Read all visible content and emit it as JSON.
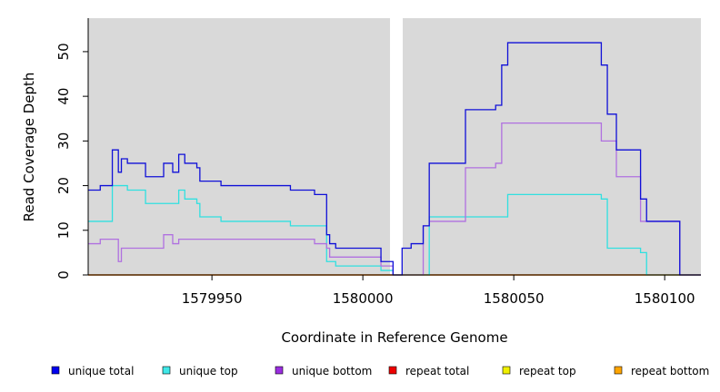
{
  "chart_data": {
    "type": "line",
    "title": "",
    "xlabel": "Coordinate in Reference Genome",
    "ylabel": "Read Coverage Depth",
    "xlim": [
      1579909,
      1580112
    ],
    "ylim": [
      0,
      57.5
    ],
    "x_ticks": [
      1579950,
      1580000,
      1580050,
      1580100
    ],
    "x_tick_labels": [
      "1579950",
      "1580000",
      "1580050",
      "1580100"
    ],
    "y_ticks": [
      0,
      10,
      20,
      30,
      40,
      50
    ],
    "y_tick_labels": [
      "0",
      "10",
      "20",
      "30",
      "40",
      "50"
    ],
    "grid": false,
    "legend_position": "bottom",
    "gap": [
      1580009.5,
      1580013.5
    ],
    "colors": {
      "plot_background": "#d9d9d9",
      "gap": "#ffffff"
    },
    "series": [
      {
        "name": "unique total",
        "color": "#1010d8",
        "swatch": "#0000ee",
        "points": [
          [
            1579909,
            19
          ],
          [
            1579913,
            19
          ],
          [
            1579913,
            20
          ],
          [
            1579917,
            20
          ],
          [
            1579917,
            28
          ],
          [
            1579919,
            28
          ],
          [
            1579919,
            23
          ],
          [
            1579920,
            23
          ],
          [
            1579920,
            26
          ],
          [
            1579922,
            26
          ],
          [
            1579922,
            25
          ],
          [
            1579928,
            25
          ],
          [
            1579928,
            22
          ],
          [
            1579934,
            22
          ],
          [
            1579934,
            25
          ],
          [
            1579937,
            25
          ],
          [
            1579937,
            23
          ],
          [
            1579939,
            23
          ],
          [
            1579939,
            27
          ],
          [
            1579941,
            27
          ],
          [
            1579941,
            25
          ],
          [
            1579945,
            25
          ],
          [
            1579945,
            24
          ],
          [
            1579946,
            24
          ],
          [
            1579946,
            21
          ],
          [
            1579953,
            21
          ],
          [
            1579953,
            20
          ],
          [
            1579976,
            20
          ],
          [
            1579976,
            19
          ],
          [
            1579984,
            19
          ],
          [
            1579984,
            18
          ],
          [
            1579988,
            18
          ],
          [
            1579988,
            9
          ],
          [
            1579989,
            9
          ],
          [
            1579989,
            7
          ],
          [
            1579991,
            7
          ],
          [
            1579991,
            6
          ],
          [
            1580006,
            6
          ],
          [
            1580006,
            3
          ],
          [
            1580010,
            3
          ],
          [
            1580010,
            0
          ],
          [
            1580013,
            0
          ],
          [
            1580013,
            6
          ],
          [
            1580016,
            6
          ],
          [
            1580016,
            7
          ],
          [
            1580020,
            7
          ],
          [
            1580020,
            11
          ],
          [
            1580022,
            11
          ],
          [
            1580022,
            25
          ],
          [
            1580034,
            25
          ],
          [
            1580034,
            37
          ],
          [
            1580044,
            37
          ],
          [
            1580044,
            38
          ],
          [
            1580046,
            38
          ],
          [
            1580046,
            47
          ],
          [
            1580048,
            47
          ],
          [
            1580048,
            52
          ],
          [
            1580079,
            52
          ],
          [
            1580079,
            47
          ],
          [
            1580081,
            47
          ],
          [
            1580081,
            36
          ],
          [
            1580084,
            36
          ],
          [
            1580084,
            28
          ],
          [
            1580092,
            28
          ],
          [
            1580092,
            17
          ],
          [
            1580094,
            17
          ],
          [
            1580094,
            12
          ],
          [
            1580105,
            12
          ],
          [
            1580105,
            0
          ],
          [
            1580112,
            0
          ]
        ]
      },
      {
        "name": "unique top",
        "color": "#30e0e0",
        "swatch": "#40e8e8",
        "points": [
          [
            1579909,
            12
          ],
          [
            1579917,
            12
          ],
          [
            1579917,
            20
          ],
          [
            1579922,
            20
          ],
          [
            1579922,
            19
          ],
          [
            1579928,
            19
          ],
          [
            1579928,
            16
          ],
          [
            1579939,
            16
          ],
          [
            1579939,
            19
          ],
          [
            1579941,
            19
          ],
          [
            1579941,
            17
          ],
          [
            1579945,
            17
          ],
          [
            1579945,
            16
          ],
          [
            1579946,
            16
          ],
          [
            1579946,
            13
          ],
          [
            1579953,
            13
          ],
          [
            1579953,
            12
          ],
          [
            1579976,
            12
          ],
          [
            1579976,
            11
          ],
          [
            1579988,
            11
          ],
          [
            1579988,
            3
          ],
          [
            1579991,
            3
          ],
          [
            1579991,
            2
          ],
          [
            1580006,
            2
          ],
          [
            1580006,
            1
          ],
          [
            1580010,
            1
          ],
          [
            1580010,
            0
          ],
          [
            1580013,
            0
          ],
          [
            1580022,
            0
          ],
          [
            1580022,
            13
          ],
          [
            1580048,
            13
          ],
          [
            1580048,
            18
          ],
          [
            1580079,
            18
          ],
          [
            1580079,
            17
          ],
          [
            1580081,
            17
          ],
          [
            1580081,
            6
          ],
          [
            1580092,
            6
          ],
          [
            1580092,
            5
          ],
          [
            1580094,
            5
          ],
          [
            1580094,
            0
          ],
          [
            1580112,
            0
          ]
        ]
      },
      {
        "name": "unique bottom",
        "color": "#b070e0",
        "swatch": "#9a2ee0",
        "points": [
          [
            1579909,
            7
          ],
          [
            1579913,
            7
          ],
          [
            1579913,
            8
          ],
          [
            1579919,
            8
          ],
          [
            1579919,
            3
          ],
          [
            1579920,
            3
          ],
          [
            1579920,
            6
          ],
          [
            1579934,
            6
          ],
          [
            1579934,
            9
          ],
          [
            1579937,
            9
          ],
          [
            1579937,
            7
          ],
          [
            1579939,
            7
          ],
          [
            1579939,
            8
          ],
          [
            1579984,
            8
          ],
          [
            1579984,
            7
          ],
          [
            1579988,
            7
          ],
          [
            1579988,
            6
          ],
          [
            1579989,
            6
          ],
          [
            1579989,
            4
          ],
          [
            1580006,
            4
          ],
          [
            1580006,
            2
          ],
          [
            1580010,
            2
          ],
          [
            1580010,
            0
          ],
          [
            1580013,
            0
          ],
          [
            1580020,
            0
          ],
          [
            1580020,
            11
          ],
          [
            1580022,
            11
          ],
          [
            1580022,
            12
          ],
          [
            1580034,
            12
          ],
          [
            1580034,
            24
          ],
          [
            1580044,
            24
          ],
          [
            1580044,
            25
          ],
          [
            1580046,
            25
          ],
          [
            1580046,
            34
          ],
          [
            1580079,
            34
          ],
          [
            1580079,
            30
          ],
          [
            1580084,
            30
          ],
          [
            1580084,
            22
          ],
          [
            1580092,
            22
          ],
          [
            1580092,
            12
          ],
          [
            1580105,
            12
          ],
          [
            1580105,
            0
          ],
          [
            1580112,
            0
          ]
        ]
      },
      {
        "name": "repeat total",
        "color": "#ee0000",
        "swatch": "#ee0000",
        "points": [
          [
            1579909,
            0
          ],
          [
            1580112,
            0
          ]
        ]
      },
      {
        "name": "repeat top",
        "color": "#f0f000",
        "swatch": "#f0f000",
        "points": [
          [
            1579909,
            0
          ],
          [
            1580112,
            0
          ]
        ]
      },
      {
        "name": "repeat bottom",
        "color": "#ffa500",
        "swatch": "#ffa500",
        "points": [
          [
            1579909,
            0
          ],
          [
            1580112,
            0
          ]
        ]
      }
    ]
  }
}
